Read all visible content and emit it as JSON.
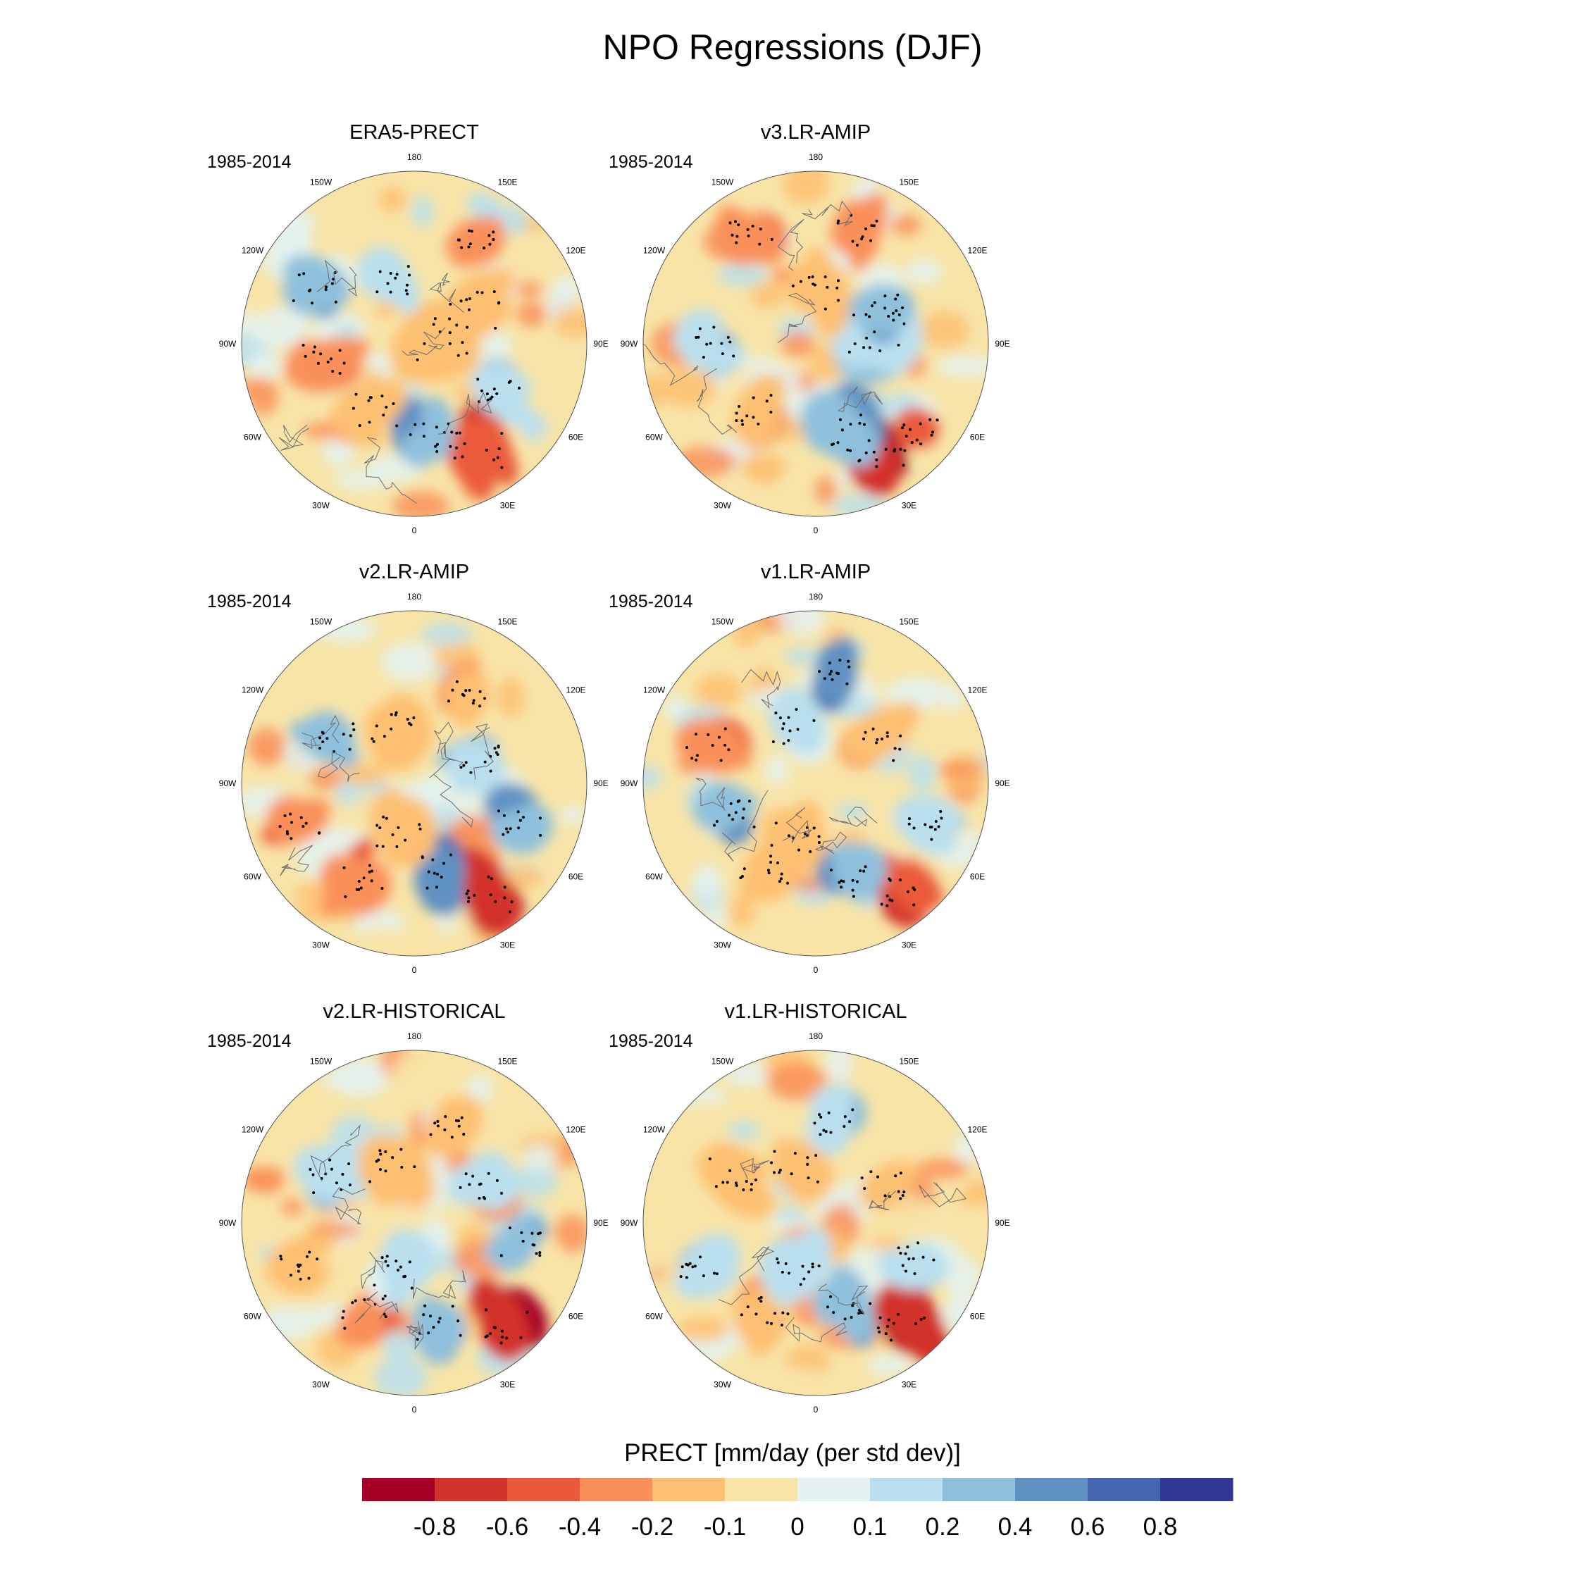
{
  "title": "NPO Regressions (DJF)",
  "colorbar": {
    "title": "PRECT [mm/day (per std dev)]",
    "colors": [
      "#a50026",
      "#d3322b",
      "#ea5a3a",
      "#f9905a",
      "#fdbf71",
      "#f8e4a7",
      "#e3f2f1",
      "#b9dfee",
      "#8ec0dc",
      "#5f91c2",
      "#4366ae",
      "#313695"
    ],
    "tick_labels": [
      "-0.8",
      "-0.6",
      "-0.4",
      "-0.2",
      "-0.1",
      "0",
      "0.1",
      "0.2",
      "0.4",
      "0.6",
      "0.8"
    ]
  },
  "lon_labels": [
    "180",
    "150E",
    "120E",
    "90E",
    "60E",
    "30E",
    "0",
    "30W",
    "60W",
    "90W",
    "120W",
    "150W"
  ],
  "panels": [
    {
      "title": "ERA5-PRECT",
      "period": "1985-2014"
    },
    {
      "title": "v3.LR-AMIP",
      "period": "1985-2014"
    },
    {
      "title": "v2.LR-AMIP",
      "period": "1985-2014"
    },
    {
      "title": "v1.LR-AMIP",
      "period": "1985-2014"
    },
    {
      "title": "v2.LR-HISTORICAL",
      "period": "1985-2014"
    },
    {
      "title": "v1.LR-HISTORICAL",
      "period": "1985-2014"
    }
  ]
}
